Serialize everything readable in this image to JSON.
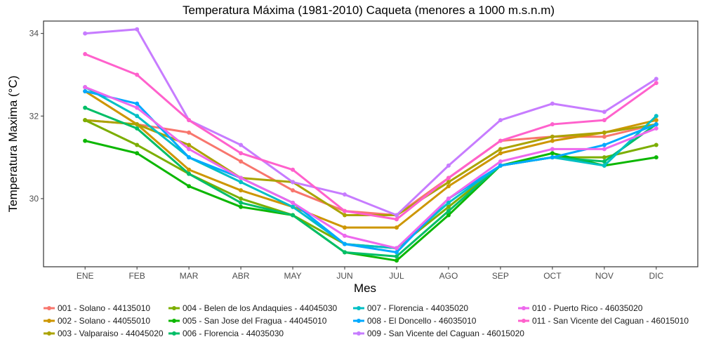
{
  "chart_data": {
    "type": "line",
    "title": "Temperatura Máxima (1981-2010) Caqueta (menores a 1000 m.s.n.m)",
    "xlabel": "Mes",
    "ylabel": "Temperatura Maxima (°C)",
    "categories": [
      "ENE",
      "FEB",
      "MAR",
      "ABR",
      "MAY",
      "JUN",
      "JUL",
      "AGO",
      "SEP",
      "OCT",
      "NOV",
      "DIC"
    ],
    "ylim": [
      28.35,
      34.3
    ],
    "yticks": [
      30,
      32,
      34
    ],
    "grid": false,
    "legend_position": "bottom",
    "series": [
      {
        "name": "001 - Solano - 44135010",
        "color": "#F8766D",
        "values": [
          31.9,
          31.8,
          31.6,
          30.9,
          30.2,
          29.7,
          29.6,
          30.5,
          31.4,
          31.5,
          31.5,
          31.8
        ]
      },
      {
        "name": "002 - Solano - 44055010",
        "color": "#CD9600",
        "values": [
          32.6,
          31.8,
          30.7,
          30.2,
          29.8,
          29.3,
          29.3,
          30.3,
          31.1,
          31.4,
          31.6,
          31.9
        ]
      },
      {
        "name": "003 - Valparaiso - 44045020",
        "color": "#ABA300",
        "values": [
          31.9,
          31.8,
          31.3,
          30.5,
          30.4,
          29.6,
          29.6,
          30.4,
          31.2,
          31.5,
          31.6,
          31.8
        ]
      },
      {
        "name": "004 - Belen de los Andaquies - 44045030",
        "color": "#7CAE00",
        "values": [
          31.9,
          31.3,
          30.6,
          30.0,
          29.6,
          28.9,
          28.8,
          29.8,
          30.8,
          31.0,
          31.0,
          31.3
        ]
      },
      {
        "name": "005 - San Jose del Fragua - 44045010",
        "color": "#0CB702",
        "values": [
          31.4,
          31.1,
          30.3,
          29.8,
          29.6,
          28.7,
          28.5,
          29.6,
          30.8,
          31.1,
          30.8,
          31.0
        ]
      },
      {
        "name": "006 - Florencia - 44035030",
        "color": "#00BE67",
        "values": [
          32.2,
          31.7,
          30.6,
          29.9,
          29.6,
          28.7,
          28.6,
          29.7,
          30.8,
          31.0,
          30.9,
          31.8
        ]
      },
      {
        "name": "007 - Florencia - 44035020",
        "color": "#00BFC4",
        "values": [
          32.7,
          32.0,
          31.0,
          30.4,
          29.8,
          28.9,
          28.8,
          29.9,
          30.8,
          31.0,
          30.8,
          32.0
        ]
      },
      {
        "name": "008 - El Doncello - 46035010",
        "color": "#00A9FF",
        "values": [
          32.6,
          32.3,
          31.0,
          30.5,
          29.9,
          28.9,
          28.7,
          30.0,
          30.8,
          31.0,
          31.3,
          31.8
        ]
      },
      {
        "name": "009 - San Vicente del Caguan - 46015020",
        "color": "#C77CFF",
        "values": [
          34.0,
          34.1,
          31.9,
          31.3,
          30.4,
          30.1,
          29.6,
          30.8,
          31.9,
          32.3,
          32.1,
          32.9
        ]
      },
      {
        "name": "010 - Puerto Rico - 46035020",
        "color": "#ED68ED",
        "values": [
          32.7,
          32.2,
          31.2,
          30.5,
          29.9,
          29.1,
          28.8,
          30.0,
          30.9,
          31.2,
          31.2,
          31.7
        ]
      },
      {
        "name": "011 - San Vicente del Caguan - 46015010",
        "color": "#FF61CC",
        "values": [
          33.5,
          33.0,
          31.9,
          31.1,
          30.7,
          29.7,
          29.5,
          30.5,
          31.4,
          31.8,
          31.9,
          32.8
        ]
      }
    ]
  }
}
